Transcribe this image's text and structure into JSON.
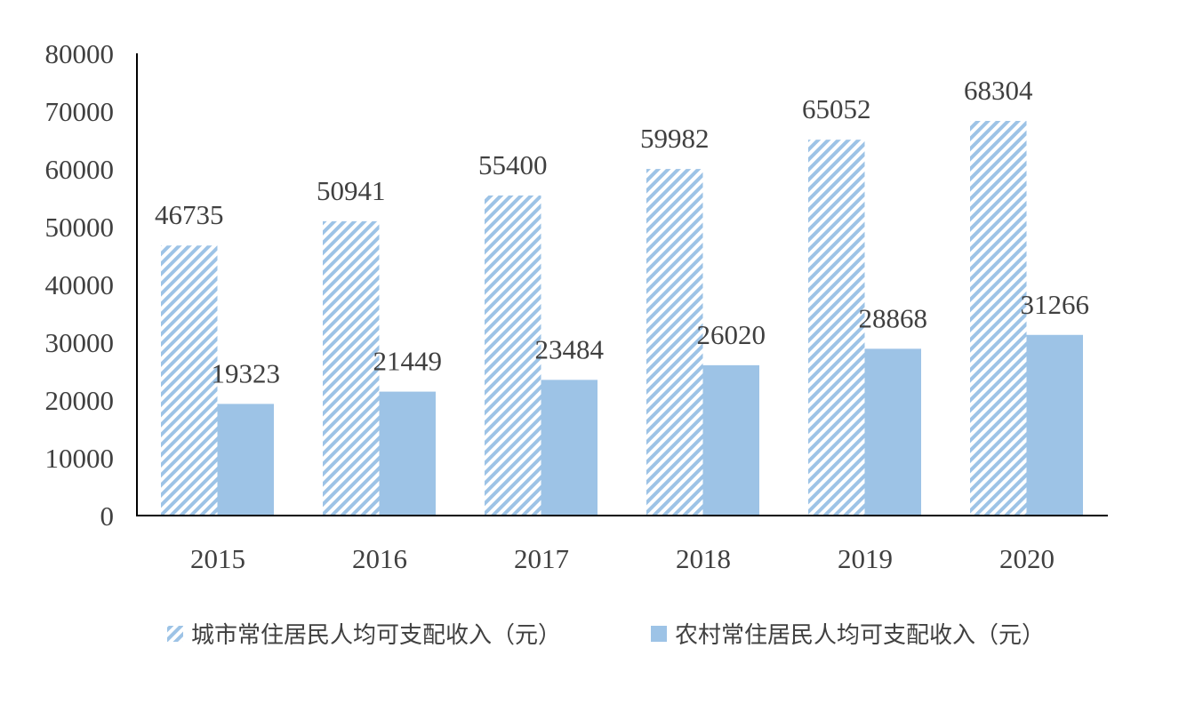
{
  "chart_data": {
    "type": "bar",
    "title": "",
    "xlabel": "",
    "ylabel": "",
    "categories": [
      "2015",
      "2016",
      "2017",
      "2018",
      "2019",
      "2020"
    ],
    "ylim": [
      0,
      80000
    ],
    "yticks": [
      0,
      10000,
      20000,
      30000,
      40000,
      50000,
      60000,
      70000,
      80000
    ],
    "grid": false,
    "legend_position": "bottom",
    "series": [
      {
        "name": "城市常住居民人均可支配收入（元）",
        "values": [
          46735,
          50941,
          55400,
          59982,
          65052,
          68304
        ],
        "color": "#9DC3E6",
        "fill": "diagonal-hatch"
      },
      {
        "name": "农村常住居民人均可支配收入（元）",
        "values": [
          19323,
          21449,
          23484,
          26020,
          28868,
          31266
        ],
        "color": "#9DC3E6",
        "fill": "solid"
      }
    ]
  }
}
